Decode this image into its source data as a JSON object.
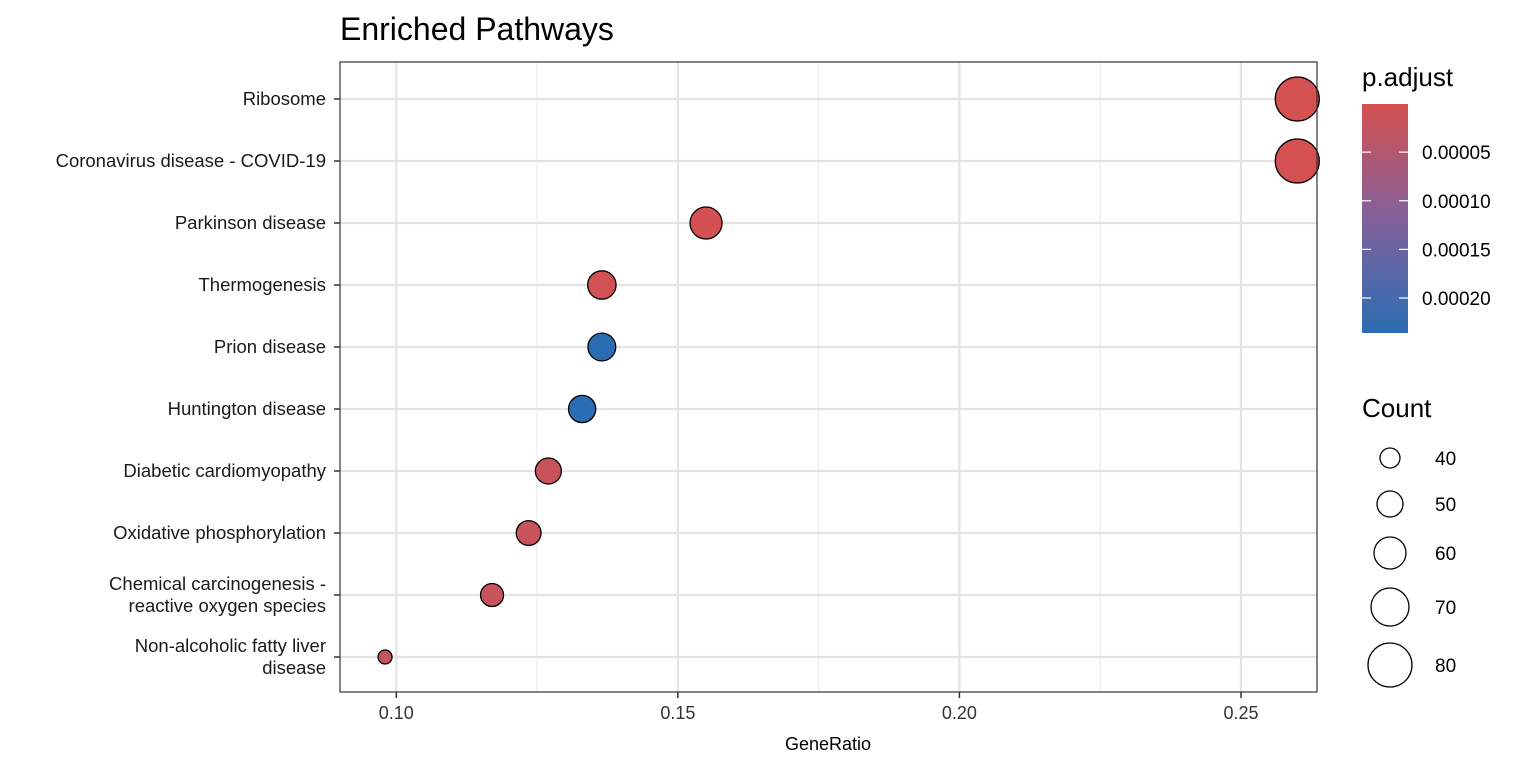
{
  "chart_data": {
    "type": "scatter",
    "title": "Enriched Pathways",
    "xlabel": "GeneRatio",
    "ylabel": "",
    "xlim": [
      0.09,
      0.2635
    ],
    "xticks": [
      0.1,
      0.15,
      0.2,
      0.25
    ],
    "xtick_labels": [
      "0.10",
      "0.15",
      "0.20",
      "0.25"
    ],
    "grid": true,
    "categories": [
      [
        "Ribosome"
      ],
      [
        "Coronavirus disease - COVID-19"
      ],
      [
        "Parkinson disease"
      ],
      [
        "Thermogenesis"
      ],
      [
        "Prion disease"
      ],
      [
        "Huntington disease"
      ],
      [
        "Diabetic cardiomyopathy"
      ],
      [
        "Oxidative phosphorylation"
      ],
      [
        "Chemical carcinogenesis -",
        "reactive oxygen species"
      ],
      [
        "Non-alcoholic fatty liver",
        "disease"
      ]
    ],
    "points": [
      {
        "gene_ratio": 0.26,
        "count": 80,
        "p_adjust": 1e-06
      },
      {
        "gene_ratio": 0.26,
        "count": 80,
        "p_adjust": 1e-06
      },
      {
        "gene_ratio": 0.155,
        "count": 60,
        "p_adjust": 3e-06
      },
      {
        "gene_ratio": 0.1365,
        "count": 54,
        "p_adjust": 6e-06
      },
      {
        "gene_ratio": 0.1365,
        "count": 53,
        "p_adjust": 0.000236
      },
      {
        "gene_ratio": 0.133,
        "count": 52,
        "p_adjust": 0.000236
      },
      {
        "gene_ratio": 0.127,
        "count": 50,
        "p_adjust": 1.8e-05
      },
      {
        "gene_ratio": 0.1235,
        "count": 48,
        "p_adjust": 1.8e-05
      },
      {
        "gene_ratio": 0.117,
        "count": 45,
        "p_adjust": 2e-05
      },
      {
        "gene_ratio": 0.098,
        "count": 30,
        "p_adjust": 2e-05
      }
    ],
    "color_legend": {
      "title": "p.adjust",
      "low_color": "#d55050",
      "mid_color": "#82619b",
      "high_color": "#2b6db3",
      "range": [
        5e-07,
        0.000236
      ],
      "ticks": [
        5e-05,
        0.0001,
        0.00015,
        0.0002
      ],
      "tick_labels": [
        "0.00005",
        "0.00010",
        "0.00015",
        "0.00020"
      ]
    },
    "size_legend": {
      "title": "Count",
      "values": [
        40,
        50,
        60,
        70,
        80
      ],
      "labels": [
        "40",
        "50",
        "60",
        "70",
        "80"
      ]
    },
    "legend_position": "right"
  }
}
